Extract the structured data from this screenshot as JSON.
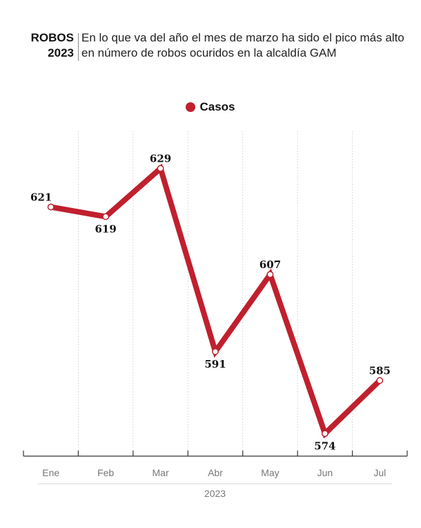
{
  "header": {
    "tag_line1": "ROBOS",
    "tag_line2": "2023",
    "description": "En lo que va del año el mes de marzo ha sido el pico más alto en número de robos ocuridos en la alcaldía GAM"
  },
  "colors": {
    "series": "#c0202e"
  },
  "chart_data": {
    "type": "line",
    "categories": [
      "Ene",
      "Feb",
      "Mar",
      "Abr",
      "May",
      "Jun",
      "Jul"
    ],
    "series": [
      {
        "name": "Casos",
        "values": [
          621,
          619,
          629,
          591,
          607,
          574,
          585
        ]
      }
    ],
    "xlabel": "2023",
    "ylabel": "",
    "ylim": [
      560,
      640
    ],
    "grid": "vertical dotted",
    "legend": "top-center"
  }
}
